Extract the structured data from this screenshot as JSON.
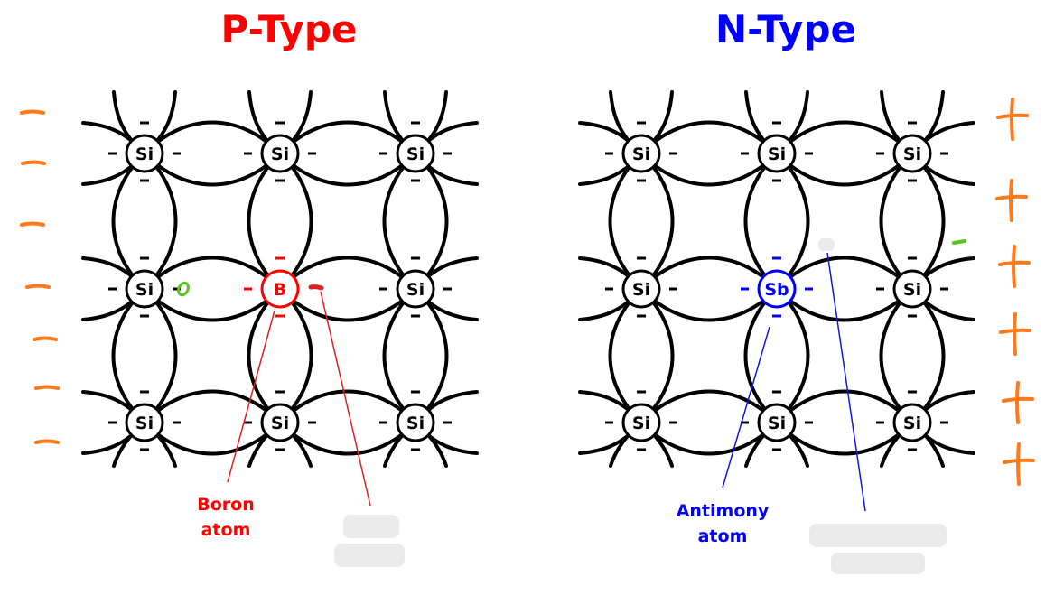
{
  "titles": {
    "p_type": "P-Type",
    "n_type": "N-Type"
  },
  "atoms": {
    "silicon": "Si",
    "boron": "B",
    "antimony": "Sb"
  },
  "labels": {
    "boron": [
      "Boron",
      "atom"
    ],
    "antimony": [
      "Antimony",
      "atom"
    ]
  },
  "colors": {
    "p_type": "#ff0000",
    "n_type": "#0000ff",
    "lattice": "#000000",
    "annotation": "#ff7a1a",
    "hole_mark": "#5cc21e",
    "pointer_red": "#e02020",
    "pointer_blue": "#1515e0",
    "redaction": "#ebebeb"
  },
  "annotations": {
    "left_marks": "−",
    "right_marks": "+"
  },
  "panels": [
    {
      "name": "p-type",
      "dopant": "boron",
      "dopant_color": "p_type",
      "side_marks": "left_marks",
      "hole": true
    },
    {
      "name": "n-type",
      "dopant": "antimony",
      "dopant_color": "n_type",
      "side_marks": "right_marks",
      "extra_electron": true
    }
  ]
}
